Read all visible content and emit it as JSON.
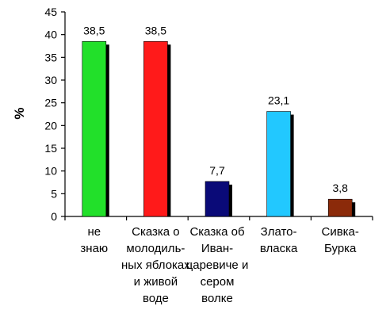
{
  "chart_data": {
    "type": "bar",
    "ylabel": "%",
    "ylim": [
      0,
      45
    ],
    "yticks": [
      0,
      5,
      10,
      15,
      20,
      25,
      30,
      35,
      40,
      45
    ],
    "grid": false,
    "categories": [
      [
        "не",
        "знаю"
      ],
      [
        "Сказка о",
        "молодиль-",
        "ных яблоках",
        "и живой",
        "воде"
      ],
      [
        "Сказка об",
        "Иван-",
        "царевиче и",
        "сером",
        "волке"
      ],
      [
        "Злато-",
        "власка"
      ],
      [
        "Сивка-",
        "Бурка"
      ]
    ],
    "values": [
      38.5,
      38.5,
      7.7,
      23.1,
      3.8
    ],
    "value_labels": [
      "38,5",
      "38,5",
      "7,7",
      "23,1",
      "3,8"
    ],
    "colors": [
      "#22e02a",
      "#ff1a1a",
      "#0a0a78",
      "#22c8ff",
      "#8b2a0a"
    ]
  }
}
